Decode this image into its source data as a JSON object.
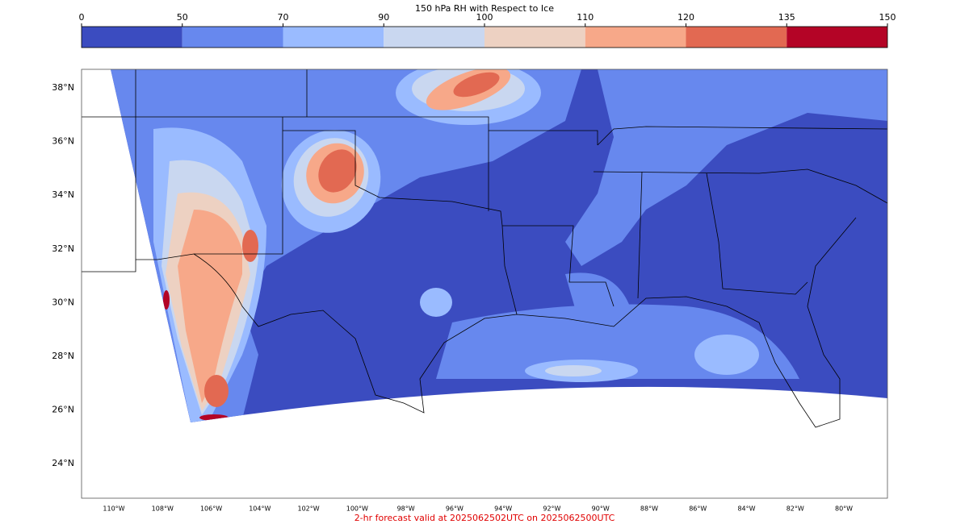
{
  "map": {
    "title": "150 hPa RH with Respect to Ice",
    "colorbar": {
      "ticks": [
        0,
        50,
        70,
        90,
        100,
        110,
        120,
        135,
        150
      ],
      "colors": [
        "#3b4cc0",
        "#6788ee",
        "#9abbff",
        "#c9d7f0",
        "#edd1c2",
        "#f7a889",
        "#e26952",
        "#b40426"
      ]
    },
    "lat_labels": [
      "38°N",
      "36°N",
      "34°N",
      "32°N",
      "30°N",
      "28°N",
      "26°N",
      "24°N"
    ],
    "lon_labels": [
      "110°W",
      "108°W",
      "106°W",
      "104°W",
      "102°W",
      "100°W",
      "98°W",
      "96°W",
      "94°W",
      "92°W",
      "90°W",
      "88°W",
      "86°W",
      "84°W",
      "82°W",
      "80°W"
    ],
    "footer": "2-hr forecast valid at 2025062502UTC on 2025062500UTC"
  }
}
